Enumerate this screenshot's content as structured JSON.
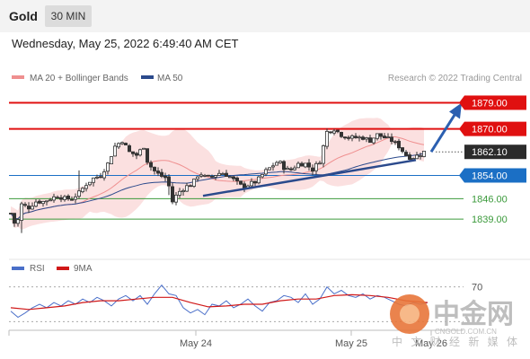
{
  "header": {
    "symbol": "Gold",
    "timeframe": "30 MIN",
    "datetime": "Wednesday, May 25, 2022 6:49:40 AM CET"
  },
  "legend": {
    "ma20_label": "MA 20 + Bollinger Bands",
    "ma50_label": "MA 50",
    "credit": "Research © 2022 Trading Central",
    "colors": {
      "ma20": "#ef8f8f",
      "ma50": "#2b4a8c"
    }
  },
  "watermark": {
    "brand_cn": "中金网",
    "site": "CNGOLD.COM.CN",
    "slogan_cn": "中 文 财 经 新 媒 体"
  },
  "chart_data": [
    {
      "type": "candlestick",
      "title": "Gold",
      "timeframe": "30 MIN",
      "x_tick_labels": [
        "May 24",
        "May 25",
        "May 26"
      ],
      "ylim": [
        1827,
        1885
      ],
      "current_price": 1862.1,
      "levels": [
        {
          "label": "1879.00",
          "value": 1879.0,
          "color": "#e01010",
          "style": "resistance-bold"
        },
        {
          "label": "1870.00",
          "value": 1870.0,
          "color": "#e01010",
          "style": "resistance"
        },
        {
          "label": "1862.10",
          "value": 1862.1,
          "color": "#333333",
          "style": "current"
        },
        {
          "label": "1854.00",
          "value": 1854.0,
          "color": "#1b6fc5",
          "style": "pivot"
        },
        {
          "label": "1846.00",
          "value": 1846.0,
          "color": "#3b9a3b",
          "style": "support"
        },
        {
          "label": "1839.00",
          "value": 1839.0,
          "color": "#3b9a3b",
          "style": "support"
        }
      ],
      "trendline_start": 1847.0,
      "trendline_end": 1859.3,
      "forecast_target": 1879.0,
      "path_points": [
        [
          0,
          1841
        ],
        [
          6,
          1836
        ],
        [
          12,
          1844
        ],
        [
          20,
          1843
        ],
        [
          28,
          1845
        ],
        [
          36,
          1845
        ],
        [
          44,
          1846
        ],
        [
          52,
          1847
        ],
        [
          60,
          1846
        ],
        [
          68,
          1846
        ],
        [
          76,
          1848
        ],
        [
          84,
          1851
        ],
        [
          92,
          1853
        ],
        [
          100,
          1854
        ],
        [
          108,
          1858
        ],
        [
          116,
          1864
        ],
        [
          124,
          1866
        ],
        [
          132,
          1862
        ],
        [
          140,
          1861
        ],
        [
          148,
          1864
        ],
        [
          152,
          1859
        ],
        [
          158,
          1856
        ],
        [
          166,
          1854
        ],
        [
          174,
          1853
        ],
        [
          180,
          1845
        ],
        [
          186,
          1848
        ],
        [
          194,
          1850
        ],
        [
          202,
          1851
        ],
        [
          210,
          1855
        ],
        [
          218,
          1853
        ],
        [
          226,
          1854
        ],
        [
          234,
          1855
        ],
        [
          242,
          1854
        ],
        [
          250,
          1852
        ],
        [
          258,
          1850
        ],
        [
          266,
          1851
        ],
        [
          274,
          1852
        ],
        [
          282,
          1855
        ],
        [
          290,
          1857
        ],
        [
          298,
          1859
        ],
        [
          306,
          1856
        ],
        [
          312,
          1856
        ],
        [
          320,
          1858
        ],
        [
          328,
          1858
        ],
        [
          336,
          1856
        ],
        [
          344,
          1859
        ],
        [
          352,
          1869
        ],
        [
          360,
          1870
        ],
        [
          368,
          1868
        ],
        [
          376,
          1867
        ],
        [
          384,
          1867
        ],
        [
          392,
          1867
        ],
        [
          400,
          1866
        ],
        [
          408,
          1868
        ],
        [
          416,
          1867
        ],
        [
          424,
          1866
        ],
        [
          432,
          1864
        ],
        [
          440,
          1861
        ],
        [
          446,
          1860
        ],
        [
          454,
          1861
        ],
        [
          460,
          1862.1
        ]
      ]
    },
    {
      "type": "line",
      "series": [
        {
          "name": "RSI",
          "color": "#4a6fc9"
        },
        {
          "name": "9MA",
          "color": "#d01818"
        }
      ],
      "y_tick_labels": [
        "70"
      ],
      "ylim": [
        20,
        80
      ],
      "rsi_points": [
        [
          0,
          42
        ],
        [
          8,
          35
        ],
        [
          16,
          40
        ],
        [
          24,
          46
        ],
        [
          32,
          50
        ],
        [
          40,
          46
        ],
        [
          48,
          52
        ],
        [
          56,
          48
        ],
        [
          64,
          54
        ],
        [
          72,
          50
        ],
        [
          80,
          56
        ],
        [
          88,
          52
        ],
        [
          96,
          58
        ],
        [
          104,
          54
        ],
        [
          112,
          48
        ],
        [
          120,
          56
        ],
        [
          128,
          60
        ],
        [
          136,
          54
        ],
        [
          144,
          60
        ],
        [
          152,
          50
        ],
        [
          160,
          62
        ],
        [
          168,
          72
        ],
        [
          176,
          62
        ],
        [
          184,
          60
        ],
        [
          192,
          46
        ],
        [
          200,
          40
        ],
        [
          208,
          44
        ],
        [
          216,
          38
        ],
        [
          224,
          50
        ],
        [
          232,
          48
        ],
        [
          240,
          54
        ],
        [
          248,
          46
        ],
        [
          256,
          50
        ],
        [
          264,
          56
        ],
        [
          272,
          48
        ],
        [
          280,
          42
        ],
        [
          288,
          52
        ],
        [
          296,
          54
        ],
        [
          304,
          60
        ],
        [
          312,
          58
        ],
        [
          320,
          52
        ],
        [
          328,
          62
        ],
        [
          336,
          50
        ],
        [
          344,
          56
        ],
        [
          352,
          70
        ],
        [
          360,
          62
        ],
        [
          368,
          66
        ],
        [
          376,
          60
        ],
        [
          384,
          58
        ],
        [
          392,
          62
        ],
        [
          400,
          56
        ],
        [
          408,
          60
        ],
        [
          416,
          58
        ],
        [
          424,
          54
        ],
        [
          432,
          50
        ],
        [
          440,
          48
        ],
        [
          448,
          52
        ],
        [
          456,
          50
        ],
        [
          464,
          52
        ]
      ],
      "ma9_points": [
        [
          0,
          46
        ],
        [
          20,
          44
        ],
        [
          40,
          46
        ],
        [
          60,
          48
        ],
        [
          80,
          52
        ],
        [
          100,
          54
        ],
        [
          120,
          54
        ],
        [
          140,
          56
        ],
        [
          160,
          58
        ],
        [
          180,
          58
        ],
        [
          200,
          52
        ],
        [
          220,
          47
        ],
        [
          240,
          48
        ],
        [
          260,
          50
        ],
        [
          280,
          50
        ],
        [
          300,
          54
        ],
        [
          320,
          56
        ],
        [
          340,
          56
        ],
        [
          360,
          60
        ],
        [
          380,
          61
        ],
        [
          400,
          60
        ],
        [
          420,
          58
        ],
        [
          440,
          54
        ],
        [
          464,
          52
        ]
      ]
    }
  ]
}
